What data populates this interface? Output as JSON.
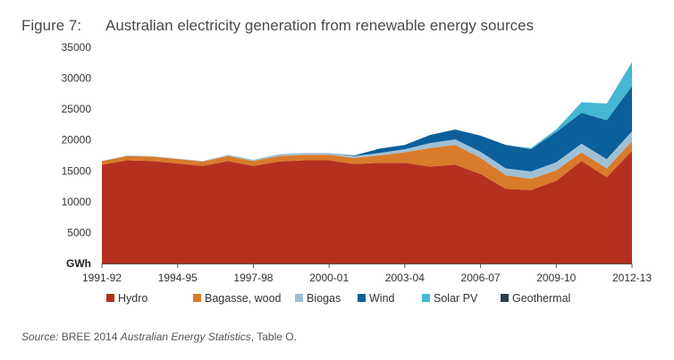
{
  "figure": {
    "label": "Figure 7:",
    "title": "Australian electricity generation from renewable energy sources"
  },
  "source": {
    "prefix": "Source:",
    "org": " BREE 2014 ",
    "publication": "Australian Energy Statistics",
    "suffix": ", Table O."
  },
  "chart_data": {
    "type": "area",
    "stacked": true,
    "x": [
      "1991-92",
      "1992-93",
      "1993-94",
      "1994-95",
      "1995-96",
      "1996-97",
      "1997-98",
      "1998-99",
      "1999-00",
      "2000-01",
      "2001-02",
      "2002-03",
      "2003-04",
      "2004-05",
      "2005-06",
      "2006-07",
      "2007-08",
      "2008-09",
      "2009-10",
      "2010-11",
      "2011-12",
      "2012-13"
    ],
    "x_tick_labels": [
      "1991-92",
      "1994-95",
      "1997-98",
      "2000-01",
      "2003-04",
      "2006-07",
      "2009-10",
      "2012-13"
    ],
    "y_unit_label": "GWh",
    "ylim": [
      0,
      35000
    ],
    "y_ticks": [
      5000,
      10000,
      15000,
      20000,
      25000,
      30000,
      35000
    ],
    "series": [
      {
        "name": "Hydro",
        "color": "#b5311f",
        "values": [
          16000,
          16700,
          16600,
          16200,
          15800,
          16600,
          15800,
          16500,
          16700,
          16700,
          16100,
          16300,
          16300,
          15700,
          16000,
          14500,
          12100,
          11900,
          13400,
          16600,
          14000,
          18200
        ]
      },
      {
        "name": "Bagasse, wood",
        "color": "#d97b2a",
        "values": [
          600,
          700,
          700,
          700,
          700,
          800,
          800,
          900,
          900,
          900,
          1000,
          1200,
          1700,
          3000,
          3200,
          2600,
          2200,
          1800,
          1700,
          1400,
          1400,
          1600
        ]
      },
      {
        "name": "Biogas",
        "color": "#9fc0d5",
        "values": [
          0,
          100,
          100,
          100,
          100,
          200,
          200,
          300,
          300,
          300,
          300,
          400,
          500,
          800,
          900,
          1000,
          1100,
          1200,
          1300,
          1400,
          1500,
          1600
        ]
      },
      {
        "name": "Wind",
        "color": "#0b5f9a",
        "values": [
          0,
          0,
          0,
          0,
          0,
          0,
          0,
          0,
          0,
          0,
          100,
          700,
          700,
          1300,
          1600,
          2600,
          3800,
          3600,
          4900,
          5000,
          6300,
          7300
        ]
      },
      {
        "name": "Solar PV",
        "color": "#45b6d5",
        "values": [
          0,
          0,
          0,
          0,
          0,
          0,
          0,
          0,
          0,
          0,
          0,
          0,
          0,
          0,
          0,
          0,
          0,
          200,
          400,
          1700,
          2700,
          3900
        ]
      },
      {
        "name": "Geothermal",
        "color": "#2b3f4b",
        "values": [
          0,
          0,
          0,
          0,
          0,
          0,
          0,
          0,
          0,
          0,
          0,
          0,
          0,
          0,
          0,
          0,
          0,
          0,
          0,
          0,
          0,
          0
        ]
      }
    ],
    "legend_position": "bottom"
  }
}
